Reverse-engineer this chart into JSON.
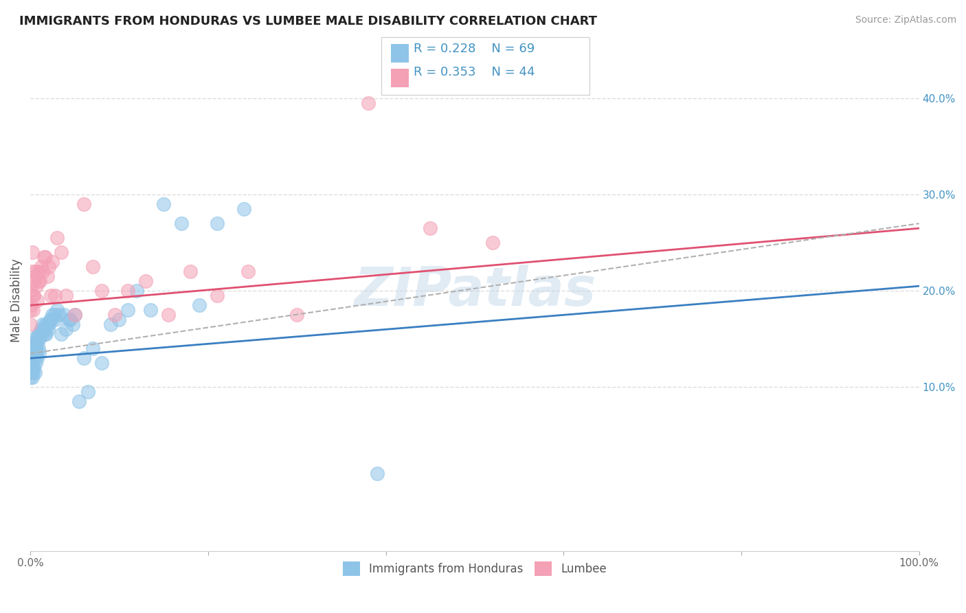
{
  "title": "IMMIGRANTS FROM HONDURAS VS LUMBEE MALE DISABILITY CORRELATION CHART",
  "source": "Source: ZipAtlas.com",
  "ylabel": "Male Disability",
  "xlim": [
    0,
    1.0
  ],
  "ylim": [
    -0.07,
    0.45
  ],
  "yticks": [
    0.1,
    0.2,
    0.3,
    0.4
  ],
  "yticklabels": [
    "10.0%",
    "20.0%",
    "30.0%",
    "40.0%"
  ],
  "watermark": "ZIPatlas",
  "legend_r1": "R = 0.228",
  "legend_n1": "N = 69",
  "legend_r2": "R = 0.353",
  "legend_n2": "N = 44",
  "legend_label1": "Immigrants from Honduras",
  "legend_label2": "Lumbee",
  "color_blue": "#8ec4e8",
  "color_pink": "#f4a0b5",
  "color_blue_line": "#3a7fc1",
  "color_pink_line": "#e05070",
  "color_dashed_line": "#b0b0b0",
  "title_color": "#222222",
  "axis_label_color": "#555555",
  "tick_color_right": "#4393c3",
  "grid_color": "#dddddd",
  "blue_line_x0": 0.0,
  "blue_line_x1": 1.0,
  "blue_line_y0": 0.13,
  "blue_line_y1": 0.205,
  "pink_line_x0": 0.0,
  "pink_line_x1": 1.0,
  "pink_line_y0": 0.185,
  "pink_line_y1": 0.265,
  "dashed_line_x0": 0.0,
  "dashed_line_x1": 1.0,
  "dashed_line_y0": 0.135,
  "dashed_line_y1": 0.27,
  "blue_scatter_x": [
    0.0,
    0.0,
    0.0,
    0.001,
    0.001,
    0.001,
    0.002,
    0.002,
    0.002,
    0.003,
    0.003,
    0.003,
    0.004,
    0.004,
    0.004,
    0.005,
    0.005,
    0.005,
    0.006,
    0.006,
    0.007,
    0.007,
    0.008,
    0.008,
    0.009,
    0.009,
    0.01,
    0.01,
    0.011,
    0.012,
    0.013,
    0.014,
    0.015,
    0.016,
    0.017,
    0.018,
    0.019,
    0.02,
    0.021,
    0.022,
    0.024,
    0.025,
    0.027,
    0.028,
    0.03,
    0.032,
    0.035,
    0.038,
    0.04,
    0.043,
    0.045,
    0.048,
    0.05,
    0.055,
    0.06,
    0.065,
    0.07,
    0.08,
    0.09,
    0.1,
    0.11,
    0.12,
    0.135,
    0.15,
    0.17,
    0.19,
    0.21,
    0.24,
    0.39
  ],
  "blue_scatter_y": [
    0.13,
    0.12,
    0.11,
    0.14,
    0.125,
    0.115,
    0.135,
    0.12,
    0.11,
    0.145,
    0.13,
    0.115,
    0.15,
    0.135,
    0.12,
    0.145,
    0.13,
    0.115,
    0.14,
    0.125,
    0.15,
    0.135,
    0.145,
    0.13,
    0.155,
    0.14,
    0.15,
    0.135,
    0.155,
    0.16,
    0.155,
    0.165,
    0.16,
    0.155,
    0.165,
    0.155,
    0.165,
    0.16,
    0.165,
    0.17,
    0.17,
    0.175,
    0.175,
    0.17,
    0.18,
    0.175,
    0.155,
    0.175,
    0.16,
    0.17,
    0.17,
    0.165,
    0.175,
    0.085,
    0.13,
    0.095,
    0.14,
    0.125,
    0.165,
    0.17,
    0.18,
    0.2,
    0.18,
    0.29,
    0.27,
    0.185,
    0.27,
    0.285,
    0.01
  ],
  "pink_scatter_x": [
    0.0,
    0.0,
    0.001,
    0.001,
    0.002,
    0.002,
    0.003,
    0.003,
    0.004,
    0.004,
    0.005,
    0.006,
    0.007,
    0.008,
    0.009,
    0.01,
    0.011,
    0.012,
    0.014,
    0.015,
    0.017,
    0.019,
    0.021,
    0.023,
    0.025,
    0.028,
    0.03,
    0.035,
    0.04,
    0.05,
    0.06,
    0.07,
    0.08,
    0.095,
    0.11,
    0.13,
    0.155,
    0.18,
    0.21,
    0.245,
    0.3,
    0.38,
    0.45,
    0.52
  ],
  "pink_scatter_y": [
    0.18,
    0.165,
    0.2,
    0.185,
    0.24,
    0.22,
    0.195,
    0.18,
    0.21,
    0.195,
    0.215,
    0.22,
    0.205,
    0.19,
    0.21,
    0.22,
    0.21,
    0.225,
    0.22,
    0.235,
    0.235,
    0.215,
    0.225,
    0.195,
    0.23,
    0.195,
    0.255,
    0.24,
    0.195,
    0.175,
    0.29,
    0.225,
    0.2,
    0.175,
    0.2,
    0.21,
    0.175,
    0.22,
    0.195,
    0.22,
    0.175,
    0.395,
    0.265,
    0.25
  ]
}
